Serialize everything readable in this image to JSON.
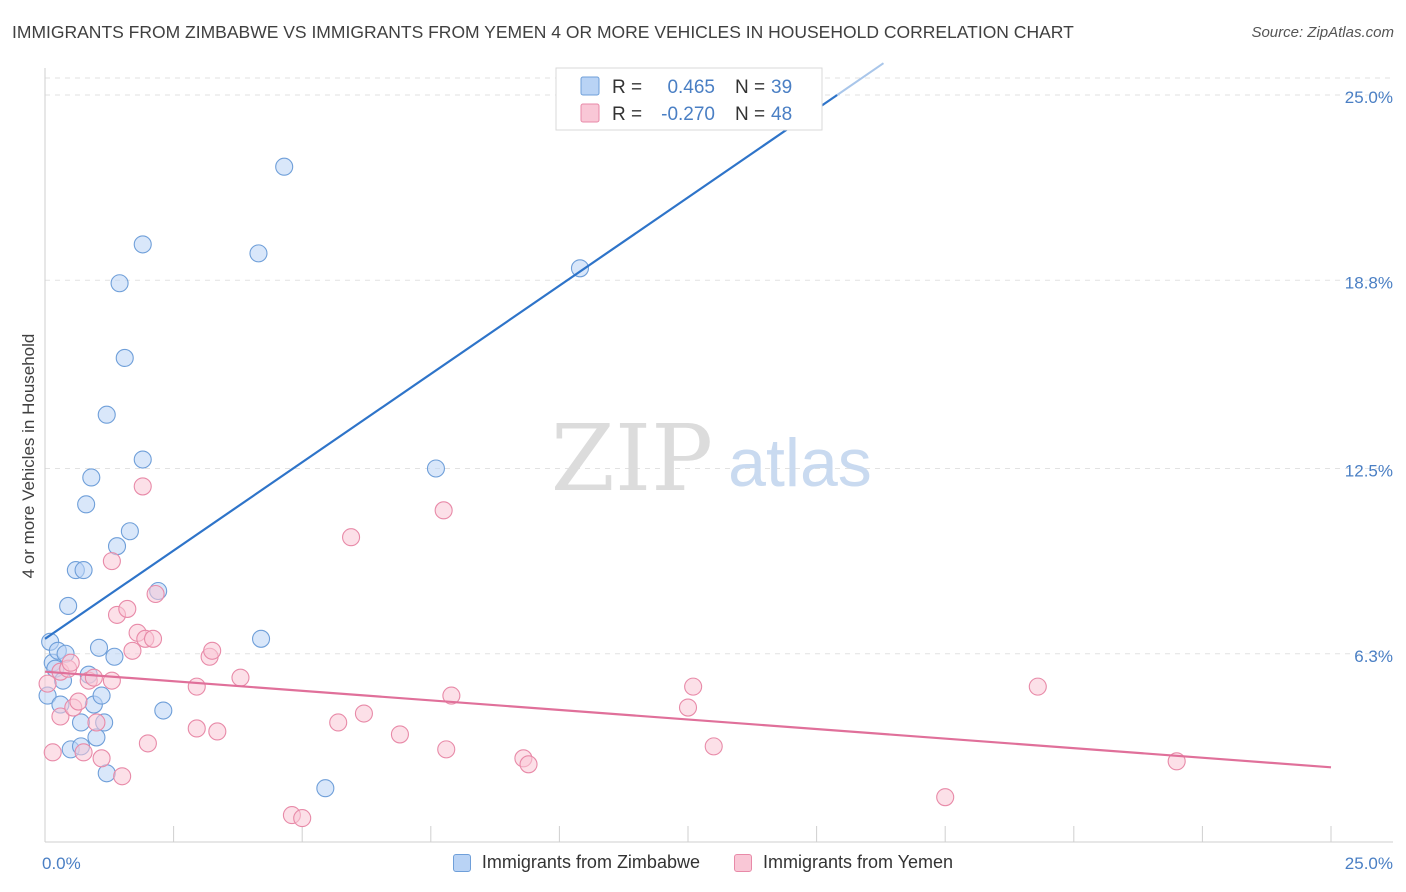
{
  "title": "IMMIGRANTS FROM ZIMBABWE VS IMMIGRANTS FROM YEMEN 4 OR MORE VEHICLES IN HOUSEHOLD CORRELATION CHART",
  "source": "Source: ZipAtlas.com",
  "watermark": {
    "zip": "ZIP",
    "atlas": "atlas"
  },
  "legend_box": [
    {
      "r_label": "R =",
      "r_value": "0.465",
      "n_label": "N =",
      "n_value": "39",
      "color": "#4a7fc4",
      "fill": "#b9d3f5",
      "stroke": "#6f9fd9"
    },
    {
      "r_label": "R =",
      "r_value": "-0.270",
      "n_label": "N =",
      "n_value": "48",
      "color": "#4a7fc4",
      "fill": "#f9c7d6",
      "stroke": "#e88aa8"
    }
  ],
  "chart_data": {
    "type": "scatter",
    "title": "IMMIGRANTS FROM ZIMBABWE VS IMMIGRANTS FROM YEMEN 4 OR MORE VEHICLES IN HOUSEHOLD CORRELATION CHART",
    "xlabel": "",
    "ylabel": "4 or more Vehicles in Household",
    "xlim": [
      0,
      25
    ],
    "ylim": [
      0,
      25
    ],
    "x_tick_labels": [
      "0.0%",
      "25.0%"
    ],
    "y_tick_labels": [
      "6.3%",
      "12.5%",
      "18.8%",
      "25.0%"
    ],
    "y_ticks": [
      6.3,
      12.5,
      18.8,
      25.0
    ],
    "grid": true,
    "legend_position": "bottom-center",
    "series": [
      {
        "name": "Immigrants from Zimbabwe",
        "color": "#6f9fd9",
        "fill": "#b9d3f5",
        "trend": {
          "x": [
            0.0,
            15.4
          ],
          "y": [
            6.8,
            25.0
          ],
          "color": "#2e74c9"
        },
        "points": [
          {
            "x": 0.05,
            "y": 4.9
          },
          {
            "x": 0.1,
            "y": 6.7
          },
          {
            "x": 0.15,
            "y": 6.0
          },
          {
            "x": 0.2,
            "y": 5.8
          },
          {
            "x": 0.25,
            "y": 6.4
          },
          {
            "x": 0.3,
            "y": 4.6
          },
          {
            "x": 0.35,
            "y": 5.4
          },
          {
            "x": 0.4,
            "y": 6.3
          },
          {
            "x": 0.45,
            "y": 7.9
          },
          {
            "x": 0.5,
            "y": 3.1
          },
          {
            "x": 0.6,
            "y": 9.1
          },
          {
            "x": 0.7,
            "y": 3.2
          },
          {
            "x": 0.75,
            "y": 9.1
          },
          {
            "x": 0.7,
            "y": 4.0
          },
          {
            "x": 0.8,
            "y": 11.3
          },
          {
            "x": 0.85,
            "y": 5.6
          },
          {
            "x": 0.9,
            "y": 12.2
          },
          {
            "x": 0.95,
            "y": 4.6
          },
          {
            "x": 1.0,
            "y": 3.5
          },
          {
            "x": 1.05,
            "y": 6.5
          },
          {
            "x": 1.1,
            "y": 4.9
          },
          {
            "x": 1.15,
            "y": 4.0
          },
          {
            "x": 1.2,
            "y": 2.3
          },
          {
            "x": 1.2,
            "y": 14.3
          },
          {
            "x": 1.35,
            "y": 6.2
          },
          {
            "x": 1.4,
            "y": 9.9
          },
          {
            "x": 1.45,
            "y": 18.7
          },
          {
            "x": 1.55,
            "y": 16.2
          },
          {
            "x": 1.65,
            "y": 10.4
          },
          {
            "x": 1.9,
            "y": 20.0
          },
          {
            "x": 1.9,
            "y": 12.8
          },
          {
            "x": 2.2,
            "y": 8.4
          },
          {
            "x": 2.3,
            "y": 4.4
          },
          {
            "x": 4.15,
            "y": 19.7
          },
          {
            "x": 4.2,
            "y": 6.8
          },
          {
            "x": 4.65,
            "y": 22.6
          },
          {
            "x": 5.45,
            "y": 1.8
          },
          {
            "x": 7.6,
            "y": 12.5
          },
          {
            "x": 10.4,
            "y": 19.2
          }
        ]
      },
      {
        "name": "Immigrants from Yemen",
        "color": "#e88aa8",
        "fill": "#f9c7d6",
        "trend": {
          "x": [
            0.0,
            25.0
          ],
          "y": [
            5.7,
            2.5
          ],
          "color": "#e0709a"
        },
        "points": [
          {
            "x": 0.05,
            "y": 5.3
          },
          {
            "x": 0.15,
            "y": 3.0
          },
          {
            "x": 0.3,
            "y": 5.7
          },
          {
            "x": 0.3,
            "y": 4.2
          },
          {
            "x": 0.45,
            "y": 5.8
          },
          {
            "x": 0.5,
            "y": 6.0
          },
          {
            "x": 0.55,
            "y": 4.5
          },
          {
            "x": 0.65,
            "y": 4.7
          },
          {
            "x": 0.75,
            "y": 3.0
          },
          {
            "x": 0.85,
            "y": 5.4
          },
          {
            "x": 0.95,
            "y": 5.5
          },
          {
            "x": 1.0,
            "y": 4.0
          },
          {
            "x": 1.1,
            "y": 2.8
          },
          {
            "x": 1.3,
            "y": 5.4
          },
          {
            "x": 1.3,
            "y": 9.4
          },
          {
            "x": 1.4,
            "y": 7.6
          },
          {
            "x": 1.5,
            "y": 2.2
          },
          {
            "x": 1.6,
            "y": 7.8
          },
          {
            "x": 1.7,
            "y": 6.4
          },
          {
            "x": 1.8,
            "y": 7.0
          },
          {
            "x": 1.9,
            "y": 11.9
          },
          {
            "x": 1.95,
            "y": 6.8
          },
          {
            "x": 2.0,
            "y": 3.3
          },
          {
            "x": 2.1,
            "y": 6.8
          },
          {
            "x": 2.15,
            "y": 8.3
          },
          {
            "x": 2.95,
            "y": 5.2
          },
          {
            "x": 2.95,
            "y": 3.8
          },
          {
            "x": 3.2,
            "y": 6.2
          },
          {
            "x": 3.25,
            "y": 6.4
          },
          {
            "x": 3.35,
            "y": 3.7
          },
          {
            "x": 3.8,
            "y": 5.5
          },
          {
            "x": 4.8,
            "y": 0.9
          },
          {
            "x": 5.0,
            "y": 0.8
          },
          {
            "x": 5.7,
            "y": 4.0
          },
          {
            "x": 5.95,
            "y": 10.2
          },
          {
            "x": 6.2,
            "y": 4.3
          },
          {
            "x": 6.9,
            "y": 3.6
          },
          {
            "x": 7.75,
            "y": 11.1
          },
          {
            "x": 7.8,
            "y": 3.1
          },
          {
            "x": 7.9,
            "y": 4.9
          },
          {
            "x": 9.3,
            "y": 2.8
          },
          {
            "x": 9.4,
            "y": 2.6
          },
          {
            "x": 12.5,
            "y": 4.5
          },
          {
            "x": 12.6,
            "y": 5.2
          },
          {
            "x": 13.0,
            "y": 3.2
          },
          {
            "x": 17.5,
            "y": 1.5
          },
          {
            "x": 19.3,
            "y": 5.2
          },
          {
            "x": 22.0,
            "y": 2.7
          }
        ]
      }
    ]
  }
}
